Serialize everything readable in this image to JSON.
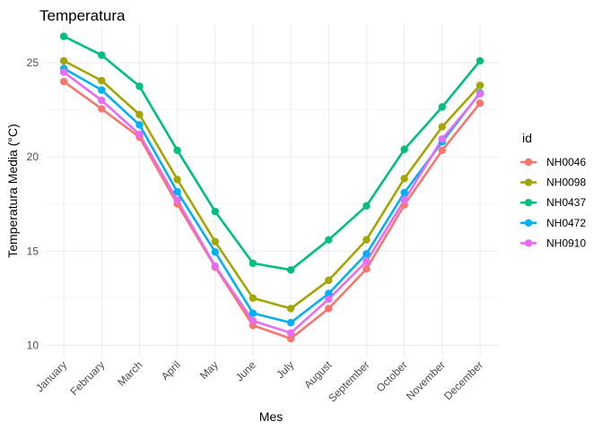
{
  "chart_data": {
    "type": "line",
    "title": "Temperatura",
    "xlabel": "Mes",
    "ylabel": "Temperatura Media (°C)",
    "categories": [
      "January",
      "February",
      "March",
      "April",
      "May",
      "June",
      "July",
      "August",
      "September",
      "October",
      "November",
      "December"
    ],
    "ylim": [
      9.4,
      27.0
    ],
    "yticks": [
      10,
      15,
      20,
      25
    ],
    "grid": true,
    "legend": {
      "title": "id",
      "position": "right"
    },
    "series": [
      {
        "name": "NH0046",
        "color": "#F8766D",
        "values": [
          24.0,
          22.55,
          21.05,
          17.5,
          14.15,
          11.05,
          10.35,
          11.95,
          14.05,
          17.45,
          20.35,
          22.85
        ]
      },
      {
        "name": "NH0098",
        "color": "#A3A500",
        "values": [
          25.1,
          24.05,
          22.25,
          18.8,
          15.5,
          12.5,
          11.95,
          13.45,
          15.6,
          18.85,
          21.6,
          23.8
        ]
      },
      {
        "name": "NH0437",
        "color": "#00BF7D",
        "values": [
          26.4,
          25.4,
          23.75,
          20.35,
          17.1,
          14.35,
          14.0,
          15.6,
          17.4,
          20.4,
          22.65,
          25.1
        ]
      },
      {
        "name": "NH0472",
        "color": "#00B0F6",
        "values": [
          24.7,
          23.55,
          21.7,
          18.15,
          14.95,
          11.7,
          11.2,
          12.75,
          14.85,
          18.1,
          20.8,
          23.4
        ]
      },
      {
        "name": "NH0910",
        "color": "#E76BF3",
        "values": [
          24.5,
          23.0,
          21.2,
          17.7,
          14.2,
          11.3,
          10.65,
          12.45,
          14.45,
          17.7,
          20.95,
          23.35
        ]
      }
    ]
  }
}
